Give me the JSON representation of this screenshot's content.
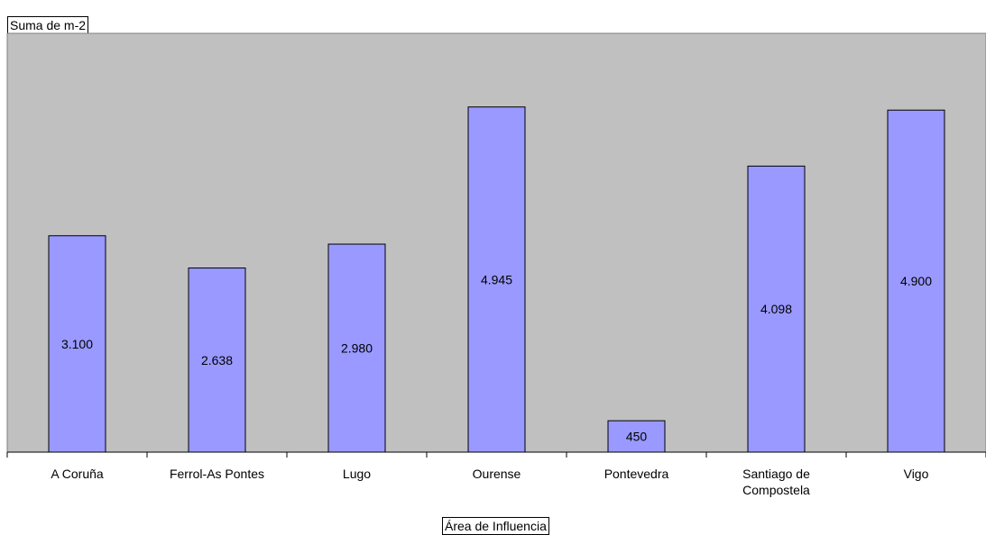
{
  "data_field_button": "Suma de m-2",
  "axis_field_button": "Área de Influencia",
  "chart_data": {
    "type": "bar",
    "title": "",
    "xlabel": "Área de Influencia",
    "ylabel": "Suma de m-2",
    "categories": [
      [
        "A Coruña"
      ],
      [
        "Ferrol-As Pontes"
      ],
      [
        "Lugo"
      ],
      [
        "Ourense"
      ],
      [
        "Pontevedra"
      ],
      [
        "Santiago de",
        "Compostela"
      ],
      [
        "Vigo"
      ]
    ],
    "series": [
      {
        "values": [
          3100,
          2638,
          2980,
          4945,
          450,
          4098,
          4900
        ],
        "labels": [
          "3.100",
          "2.638",
          "2.980",
          "4.945",
          "450",
          "4.098",
          "4.900"
        ]
      }
    ],
    "ylim": [
      0,
      6000
    ],
    "grid": false,
    "plot_background": "#c0c0c0",
    "bar_color": "#9999ff",
    "bar_border": "#000000"
  }
}
